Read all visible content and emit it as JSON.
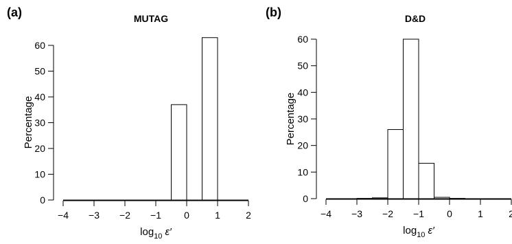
{
  "chart_data": [
    {
      "type": "bar",
      "panel_label": "(a)",
      "title": "MUTAG",
      "xlabel": {
        "base": "log",
        "sub": "10",
        "symbol": "ε′"
      },
      "ylabel": "Percentage",
      "xlim": [
        -4,
        2
      ],
      "ylim": [
        0,
        60
      ],
      "xticks": [
        "−4",
        "−3",
        "−2",
        "−1",
        "0",
        "1",
        "2"
      ],
      "xtick_values": [
        -4,
        -3,
        -2,
        -1,
        0,
        1,
        2
      ],
      "yticks": [
        "0",
        "10",
        "20",
        "30",
        "40",
        "50",
        "60"
      ],
      "ytick_values": [
        0,
        10,
        20,
        30,
        40,
        50,
        60
      ],
      "bin_width": 0.5,
      "bins": [
        {
          "x0": -4.0,
          "value": 0
        },
        {
          "x0": -3.5,
          "value": 0
        },
        {
          "x0": -3.0,
          "value": 0
        },
        {
          "x0": -2.5,
          "value": 0
        },
        {
          "x0": -2.0,
          "value": 0
        },
        {
          "x0": -1.5,
          "value": 0
        },
        {
          "x0": -1.0,
          "value": 0
        },
        {
          "x0": -0.5,
          "value": 37
        },
        {
          "x0": 0.0,
          "value": 0
        },
        {
          "x0": 0.5,
          "value": 63
        },
        {
          "x0": 1.0,
          "value": 0
        },
        {
          "x0": 1.5,
          "value": 0
        }
      ]
    },
    {
      "type": "bar",
      "panel_label": "(b)",
      "title": "D&D",
      "xlabel": {
        "base": "log",
        "sub": "10",
        "symbol": "ε′"
      },
      "ylabel": "Percentage",
      "xlim": [
        -4,
        2
      ],
      "ylim": [
        0,
        60
      ],
      "xticks": [
        "−4",
        "−3",
        "−2",
        "−1",
        "0",
        "1",
        "2"
      ],
      "xtick_values": [
        -4,
        -3,
        -2,
        -1,
        0,
        1,
        2
      ],
      "yticks": [
        "0",
        "10",
        "20",
        "30",
        "40",
        "50",
        "60"
      ],
      "ytick_values": [
        0,
        10,
        20,
        30,
        40,
        50,
        60
      ],
      "bin_width": 0.5,
      "bins": [
        {
          "x0": -4.0,
          "value": 0
        },
        {
          "x0": -3.5,
          "value": 0
        },
        {
          "x0": -3.0,
          "value": 0.1
        },
        {
          "x0": -2.5,
          "value": 0.3
        },
        {
          "x0": -2.0,
          "value": 26
        },
        {
          "x0": -1.5,
          "value": 60
        },
        {
          "x0": -1.0,
          "value": 13.3
        },
        {
          "x0": -0.5,
          "value": 0.5
        },
        {
          "x0": 0.0,
          "value": 0.1
        },
        {
          "x0": 0.5,
          "value": 0
        },
        {
          "x0": 1.0,
          "value": 0
        },
        {
          "x0": 1.5,
          "value": 0
        }
      ]
    }
  ]
}
